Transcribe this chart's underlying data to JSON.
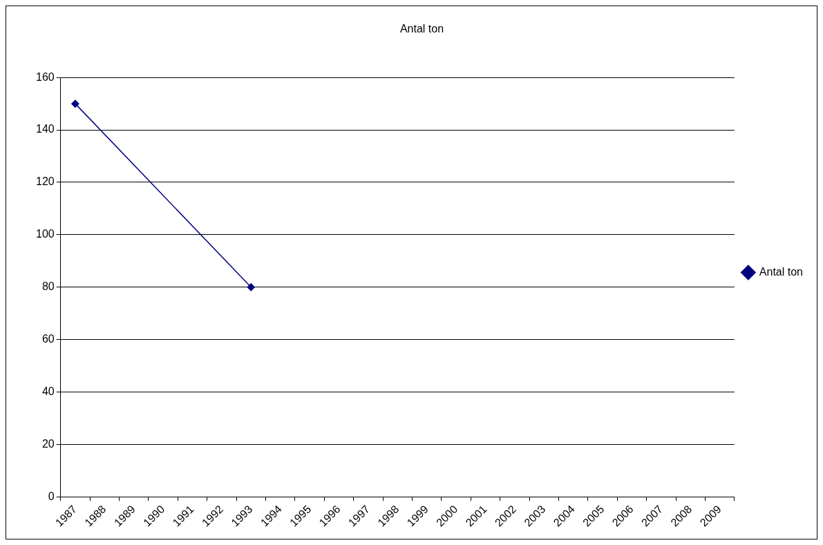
{
  "chart_data": {
    "type": "line",
    "title": "Antal ton",
    "categories": [
      "1987",
      "1988",
      "1989",
      "1990",
      "1991",
      "1992",
      "1993",
      "1994",
      "1995",
      "1996",
      "1997",
      "1998",
      "1999",
      "2000",
      "2001",
      "2002",
      "2003",
      "2004",
      "2005",
      "2006",
      "2007",
      "2008",
      "2009"
    ],
    "series": [
      {
        "name": "Antal ton",
        "color": "#000080",
        "values": [
          150,
          null,
          null,
          null,
          null,
          null,
          80,
          null,
          null,
          null,
          null,
          null,
          null,
          null,
          null,
          null,
          null,
          null,
          null,
          null,
          null,
          null,
          null
        ]
      }
    ],
    "ylim": [
      0,
      160
    ],
    "yticks": [
      0,
      20,
      40,
      60,
      80,
      100,
      120,
      140,
      160
    ],
    "grid": "y",
    "legend": "right",
    "marker": "diamond",
    "line_style": "solid"
  }
}
